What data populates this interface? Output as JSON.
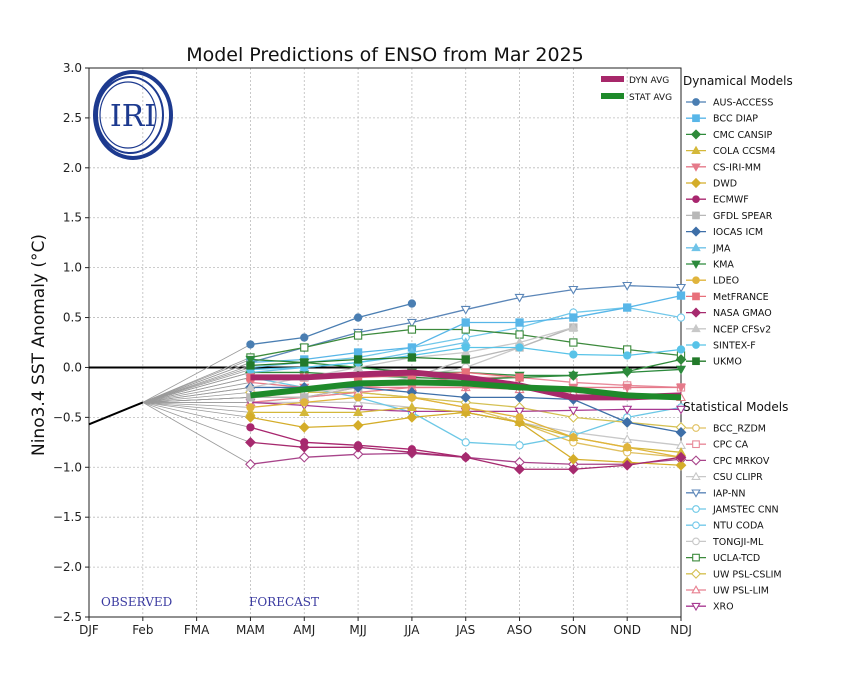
{
  "chart_data": {
    "type": "line",
    "title": "Model Predictions of ENSO from Mar 2025",
    "ylabel": "Nino3.4 SST Anomaly (°C)",
    "xlabel": "",
    "categories": [
      "DJF",
      "Feb",
      "FMA",
      "MAM",
      "AMJ",
      "MJJ",
      "JJA",
      "JAS",
      "ASO",
      "SON",
      "OND",
      "NDJ"
    ],
    "ylim": [
      -2.5,
      3.0
    ],
    "yticks": [
      -2.5,
      -2.0,
      -1.5,
      -1.0,
      -0.5,
      0.0,
      0.5,
      1.0,
      1.5,
      2.0,
      2.5,
      3.0
    ],
    "ytick_labels": [
      "−2.5",
      "−2.0",
      "−1.5",
      "−1.0",
      "−0.5",
      "0.0",
      "0.5",
      "1.0",
      "1.5",
      "2.0",
      "2.5",
      "3.0"
    ],
    "grid": true,
    "zero_line": true,
    "observed_label": "OBSERVED",
    "forecast_label": "FORECAST",
    "logo_text": "IRI",
    "observed": [
      -0.57,
      -0.35
    ],
    "averages": [
      {
        "name": "DYN AVG",
        "color": "#a7286a",
        "values": [
          -0.1,
          -0.1,
          -0.07,
          -0.05,
          -0.1,
          -0.18,
          -0.3,
          -0.3,
          -0.28
        ]
      },
      {
        "name": "STAT AVG",
        "color": "#1e8a2a",
        "values": [
          -0.28,
          -0.22,
          -0.16,
          -0.15,
          -0.16,
          -0.2,
          -0.22,
          -0.28,
          -0.3
        ]
      }
    ],
    "dynamical_title": "Dynamical Models",
    "statistical_title": "Statistical Models",
    "dynamical_models": [
      {
        "name": "AUS-ACCESS",
        "color": "#4a7eb2",
        "marker": "circle",
        "fill": true,
        "values": [
          0.23,
          0.3,
          0.5,
          0.64
        ]
      },
      {
        "name": "BCC DIAP",
        "color": "#58b6e8",
        "marker": "square",
        "fill": true,
        "values": [
          0.05,
          0.08,
          0.15,
          0.2,
          0.45,
          0.45,
          0.5,
          0.6,
          0.72
        ]
      },
      {
        "name": "CMC CANSIP",
        "color": "#2f8a3a",
        "marker": "diamond",
        "fill": true,
        "values": [
          -0.05,
          -0.05,
          -0.08,
          -0.1,
          -0.12,
          -0.1,
          -0.08,
          -0.04,
          0.08
        ]
      },
      {
        "name": "COLA CCSM4",
        "color": "#d4b83a",
        "marker": "triangle-up",
        "fill": true,
        "values": [
          -0.45,
          -0.45,
          -0.45,
          -0.4,
          -0.45,
          -0.55,
          -0.7,
          -0.8,
          -0.85
        ]
      },
      {
        "name": "CS-IRI-MM",
        "color": "#e57a8a",
        "marker": "triangle-down",
        "fill": true,
        "values": [
          -0.15,
          -0.2,
          -0.2,
          -0.2,
          -0.2,
          -0.2,
          -0.2,
          -0.2,
          -0.2
        ]
      },
      {
        "name": "DWD",
        "color": "#d4ad2a",
        "marker": "diamond",
        "fill": true,
        "values": [
          -0.5,
          -0.6,
          -0.58,
          -0.5,
          -0.45,
          -0.55,
          -0.92,
          -0.95,
          -0.98
        ]
      },
      {
        "name": "ECMWF",
        "color": "#a8266e",
        "marker": "circle",
        "fill": true,
        "values": [
          -0.6,
          -0.75,
          -0.78,
          -0.82,
          -0.9
        ]
      },
      {
        "name": "GFDL SPEAR",
        "color": "#b8b8b8",
        "marker": "square",
        "fill": true,
        "values": [
          -0.3,
          -0.3,
          -0.2,
          -0.1,
          0.08,
          0.2,
          0.4
        ]
      },
      {
        "name": "IOCAS ICM",
        "color": "#3e6fa8",
        "marker": "diamond",
        "fill": true,
        "values": [
          -0.2,
          -0.2,
          -0.2,
          -0.25,
          -0.3,
          -0.3,
          -0.32,
          -0.55,
          -0.65
        ]
      },
      {
        "name": "JMA",
        "color": "#6fc3e8",
        "marker": "triangle-up",
        "fill": true,
        "values": [
          -0.05,
          0.0,
          0.05,
          0.15,
          0.25
        ]
      },
      {
        "name": "KMA",
        "color": "#2c8a3c",
        "marker": "triangle-down",
        "fill": true,
        "values": [
          0.08,
          0.05,
          0.0,
          -0.05,
          -0.05,
          -0.08,
          -0.08,
          -0.05,
          -0.02
        ]
      },
      {
        "name": "LDEO",
        "color": "#e0b43c",
        "marker": "circle",
        "fill": true,
        "values": [
          -0.4,
          -0.35,
          -0.3,
          -0.3,
          -0.4,
          -0.5,
          -0.7,
          -0.8,
          -0.9
        ]
      },
      {
        "name": "MetFRANCE",
        "color": "#e8707a",
        "marker": "square",
        "fill": true,
        "values": [
          -0.1,
          -0.1,
          -0.1,
          -0.08,
          -0.05,
          -0.1
        ]
      },
      {
        "name": "NASA GMAO",
        "color": "#a62a6e",
        "marker": "diamond",
        "fill": true,
        "values": [
          -0.75,
          -0.8,
          -0.8,
          -0.85,
          -0.9,
          -1.02,
          -1.02,
          -0.98,
          -0.9
        ]
      },
      {
        "name": "NCEP CFSv2",
        "color": "#c8c8c8",
        "marker": "triangle-up",
        "fill": true,
        "values": [
          -0.2,
          -0.1,
          0.0,
          0.1,
          0.15,
          0.25,
          0.4
        ]
      },
      {
        "name": "SINTEX-F",
        "color": "#58c3e8",
        "marker": "circle",
        "fill": true,
        "values": [
          -0.02,
          0.0,
          0.05,
          0.12,
          0.2,
          0.2,
          0.13,
          0.12,
          0.18
        ]
      },
      {
        "name": "UKMO",
        "color": "#237a2a",
        "marker": "square",
        "fill": true,
        "values": [
          0.02,
          0.05,
          0.08,
          0.1,
          0.08
        ]
      }
    ],
    "statistical_models": [
      {
        "name": "BCC_RZDM",
        "color": "#e0c060",
        "marker": "circle",
        "fill": false,
        "values": [
          -0.3,
          -0.3,
          -0.25,
          -0.3,
          -0.4,
          -0.55,
          -0.75,
          -0.85,
          -0.9
        ]
      },
      {
        "name": "CPC CA",
        "color": "#e88a9a",
        "marker": "square",
        "fill": false,
        "values": [
          -0.3,
          -0.3,
          -0.2,
          -0.15,
          -0.1,
          -0.1,
          -0.15,
          -0.18,
          -0.2
        ]
      },
      {
        "name": "CPC MRKOV",
        "color": "#a8448a",
        "marker": "diamond",
        "fill": false,
        "values": [
          -0.97,
          -0.9,
          -0.87,
          -0.86,
          -0.9,
          -0.95,
          -0.97,
          -0.97,
          -0.92
        ]
      },
      {
        "name": "CSU CLIPR",
        "color": "#c8c8c8",
        "marker": "triangle-up",
        "fill": false,
        "values": [
          -0.35,
          -0.35,
          -0.35,
          -0.4,
          -0.45,
          -0.55,
          -0.65,
          -0.72,
          -0.78
        ]
      },
      {
        "name": "IAP-NN",
        "color": "#5b86b8",
        "marker": "triangle-down",
        "fill": false,
        "values": [
          0.05,
          0.2,
          0.35,
          0.45,
          0.58,
          0.7,
          0.78,
          0.82,
          0.8
        ]
      },
      {
        "name": "JAMSTEC CNN",
        "color": "#6dc8e6",
        "marker": "circle",
        "fill": false,
        "values": [
          -0.1,
          -0.2,
          -0.3,
          -0.45,
          -0.75,
          -0.78,
          -0.68,
          -0.5,
          -0.4
        ]
      },
      {
        "name": "NTU CODA",
        "color": "#72c8ea",
        "marker": "circle",
        "fill": false,
        "values": [
          0.0,
          0.05,
          0.1,
          0.2,
          0.3,
          0.4,
          0.55,
          0.6,
          0.5
        ]
      },
      {
        "name": "TONGJI-ML",
        "color": "#c8c8c8",
        "marker": "circle",
        "fill": false,
        "values": [
          -0.3,
          -0.25,
          -0.2,
          -0.1,
          0.0,
          0.2,
          0.4
        ]
      },
      {
        "name": "UCLA-TCD",
        "color": "#3c8a3c",
        "marker": "square",
        "fill": false,
        "values": [
          0.1,
          0.2,
          0.32,
          0.38,
          0.38,
          0.33,
          0.25,
          0.18,
          0.12
        ]
      },
      {
        "name": "UW PSL-CSLIM",
        "color": "#d4c052",
        "marker": "diamond",
        "fill": false,
        "values": [
          -0.25,
          -0.25,
          -0.25,
          -0.3,
          -0.35,
          -0.4,
          -0.5,
          -0.55,
          -0.6
        ]
      },
      {
        "name": "UW PSL-LIM",
        "color": "#e88090",
        "marker": "triangle-up",
        "fill": false,
        "values": [
          -0.35,
          -0.3,
          -0.25,
          -0.2,
          -0.2,
          -0.22,
          -0.25,
          -0.28,
          -0.3
        ]
      },
      {
        "name": "XRO",
        "color": "#a83a92",
        "marker": "triangle-down",
        "fill": false,
        "values": [
          -0.35,
          -0.38,
          -0.42,
          -0.44,
          -0.44,
          -0.44,
          -0.43,
          -0.42,
          -0.42
        ]
      }
    ]
  }
}
